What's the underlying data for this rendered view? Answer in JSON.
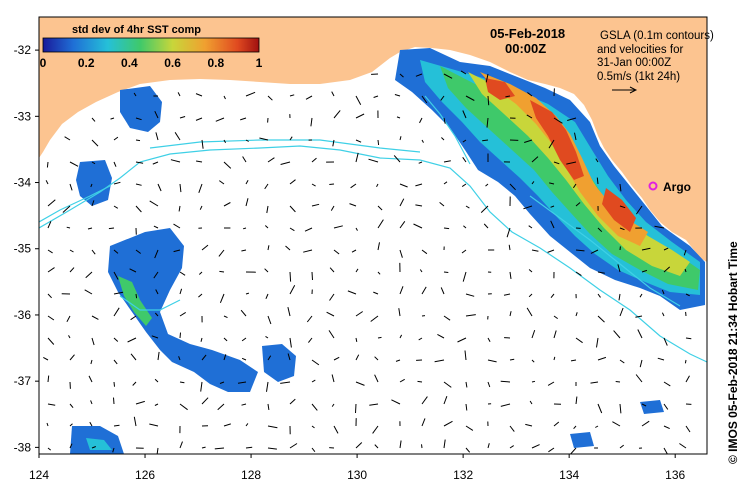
{
  "map": {
    "title_date": "05-Feb-2018",
    "title_time": "00:00Z",
    "legend": {
      "title": "std dev of 4hr SST comp",
      "ticks": [
        "0",
        "0.2",
        "0.4",
        "0.6",
        "0.8",
        "1"
      ],
      "colors": [
        "#1a1a9a",
        "#1f6fd6",
        "#25c0d8",
        "#3fc96a",
        "#c8d63a",
        "#f0a030",
        "#e04a20",
        "#a01010"
      ]
    },
    "annotation": {
      "line1": "GSLA (0.1m contours)",
      "line2": "and velocities for",
      "line3": "31-Jan 00:00Z",
      "line4": "0.5m/s (1kt 24h)"
    },
    "argo_label": "Argo",
    "credit": "© IMOS 05-Feb-2018 21:34 Hobart Time",
    "x_ticks": [
      "124",
      "126",
      "128",
      "130",
      "132",
      "134",
      "136"
    ],
    "y_ticks": [
      "-32",
      "-33",
      "-34",
      "-35",
      "-36",
      "-37",
      "-38"
    ],
    "land_color": "#fcc490",
    "contour_color": "#3fd0e6"
  }
}
